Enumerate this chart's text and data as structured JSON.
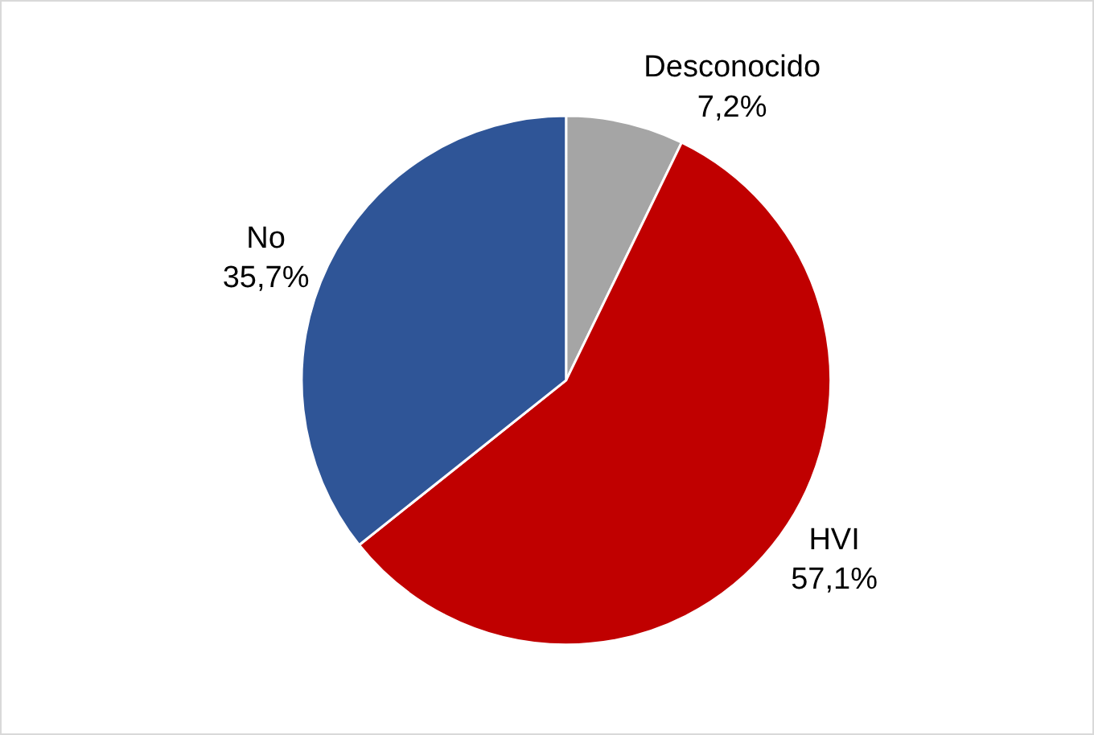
{
  "chart_data": {
    "type": "pie",
    "categories": [
      "Desconocido",
      "HVI",
      "No"
    ],
    "values": [
      7.2,
      57.1,
      35.7
    ],
    "value_labels": [
      "7,2%",
      "57,1%",
      "35,7%"
    ],
    "colors": [
      "#a5a5a5",
      "#c00000",
      "#2f5597"
    ]
  }
}
